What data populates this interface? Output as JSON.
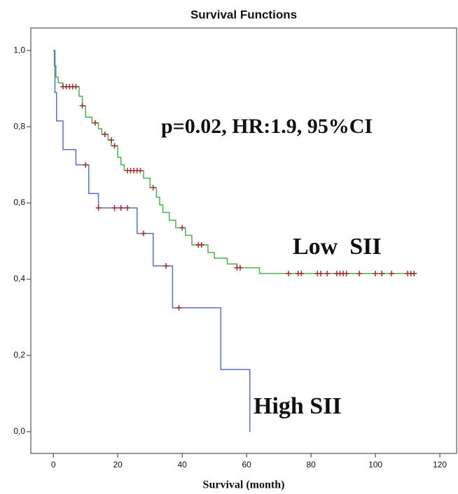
{
  "chart_data": {
    "type": "step",
    "title": "Survival Functions",
    "x_label": "Survival (month)",
    "annotation": "p=0.02, HR:1.9, 95%CI",
    "xlim": [
      -7,
      125.2
    ],
    "xticks": [
      0,
      20,
      40,
      60,
      80,
      100,
      120
    ],
    "ylim": [
      -0.057,
      1.059
    ],
    "yticks": [
      {
        "value": 0,
        "label": "0,0"
      },
      {
        "value": 0.2,
        "label": "0,2"
      },
      {
        "value": 0.4,
        "label": "0,4"
      },
      {
        "value": 0.6,
        "label": "0,6"
      },
      {
        "value": 0.8,
        "label": "0,8"
      },
      {
        "value": 1,
        "label": "1,0"
      }
    ],
    "censor_color": "#9b2d30",
    "series": [
      {
        "name": "Low  SII",
        "color": "#4caf50",
        "x": [
          0,
          0.3,
          0.8,
          1.5,
          3,
          8,
          9,
          10,
          12,
          14,
          15,
          17,
          18,
          20,
          21,
          22,
          28,
          30,
          32,
          33,
          34,
          36,
          38,
          41,
          43,
          48,
          50,
          54,
          57,
          64,
          112
        ],
        "values": [
          1,
          0.96,
          0.93,
          0.915,
          0.905,
          0.88,
          0.855,
          0.825,
          0.81,
          0.795,
          0.78,
          0.765,
          0.75,
          0.72,
          0.7,
          0.685,
          0.665,
          0.64,
          0.615,
          0.595,
          0.575,
          0.555,
          0.535,
          0.515,
          0.49,
          0.47,
          0.455,
          0.44,
          0.43,
          0.415,
          0.415
        ],
        "censor_x": [
          3,
          4,
          5,
          6,
          7,
          9,
          13,
          16,
          18,
          19,
          23,
          24,
          25,
          26,
          27,
          31,
          40,
          45,
          46,
          57,
          58,
          73,
          76,
          77,
          82,
          83,
          85,
          88,
          89,
          90,
          91,
          95,
          100,
          102,
          105,
          110,
          111,
          112
        ],
        "censor_values": [
          0.905,
          0.905,
          0.905,
          0.905,
          0.905,
          0.855,
          0.81,
          0.78,
          0.765,
          0.75,
          0.685,
          0.685,
          0.685,
          0.685,
          0.685,
          0.64,
          0.535,
          0.49,
          0.49,
          0.43,
          0.43,
          0.415,
          0.415,
          0.415,
          0.415,
          0.415,
          0.415,
          0.415,
          0.415,
          0.415,
          0.415,
          0.415,
          0.415,
          0.415,
          0.415,
          0.415,
          0.415,
          0.415
        ]
      },
      {
        "name": "High SII",
        "color": "#5b6fc0",
        "x": [
          0,
          0.5,
          1,
          3,
          7,
          11,
          14,
          26,
          31,
          37,
          52,
          61
        ],
        "values": [
          1,
          0.89,
          0.815,
          0.74,
          0.7,
          0.625,
          0.587,
          0.52,
          0.435,
          0.325,
          0.163,
          0
        ],
        "censor_x": [
          10,
          14,
          19,
          21,
          23,
          28,
          35,
          39
        ],
        "censor_values": [
          0.7,
          0.587,
          0.587,
          0.587,
          0.587,
          0.52,
          0.435,
          0.325
        ]
      }
    ]
  }
}
